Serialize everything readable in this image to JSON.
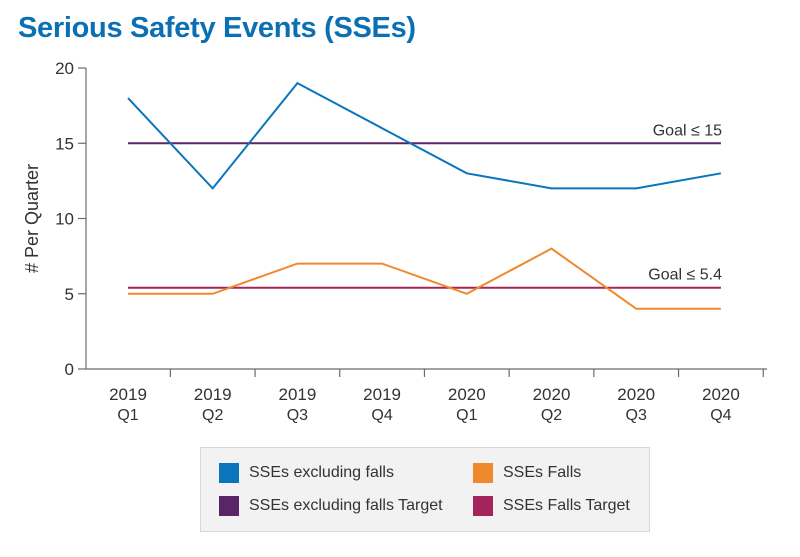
{
  "title": "Serious Safety Events (SSEs)",
  "chart_data": {
    "type": "line",
    "ylabel": "# Per Quarter",
    "xlabel": "",
    "ylim": [
      0,
      20
    ],
    "yticks": [
      0,
      5,
      10,
      15,
      20
    ],
    "categories": [
      {
        "year": "2019",
        "q": "Q1"
      },
      {
        "year": "2019",
        "q": "Q2"
      },
      {
        "year": "2019",
        "q": "Q3"
      },
      {
        "year": "2019",
        "q": "Q4"
      },
      {
        "year": "2020",
        "q": "Q1"
      },
      {
        "year": "2020",
        "q": "Q2"
      },
      {
        "year": "2020",
        "q": "Q3"
      },
      {
        "year": "2020",
        "q": "Q4"
      }
    ],
    "series": [
      {
        "name": "SSEs excluding falls",
        "color": "#0a75bc",
        "values": [
          18,
          12,
          19,
          16,
          13,
          12,
          12,
          13
        ]
      },
      {
        "name": "SSEs Falls",
        "color": "#f0892e",
        "values": [
          5,
          5,
          7,
          7,
          5,
          8,
          4,
          4
        ]
      },
      {
        "name": "SSEs excluding falls Target",
        "color": "#5a2468",
        "values": [
          15,
          15,
          15,
          15,
          15,
          15,
          15,
          15
        ]
      },
      {
        "name": "SSEs Falls Target",
        "color": "#a3235a",
        "values": [
          5.4,
          5.4,
          5.4,
          5.4,
          5.4,
          5.4,
          5.4,
          5.4
        ]
      }
    ],
    "annotations": [
      {
        "text": "Goal ≤ 15",
        "y": 15
      },
      {
        "text": "Goal ≤ 5.4",
        "y": 5.4
      }
    ],
    "legend_position": "bottom",
    "grid": false
  },
  "legend": [
    {
      "label": "SSEs excluding falls",
      "color": "#0a75bc"
    },
    {
      "label": "SSEs Falls",
      "color": "#f0892e"
    },
    {
      "label": "SSEs excluding falls Target",
      "color": "#5a2468"
    },
    {
      "label": "SSEs Falls Target",
      "color": "#a3235a"
    }
  ]
}
